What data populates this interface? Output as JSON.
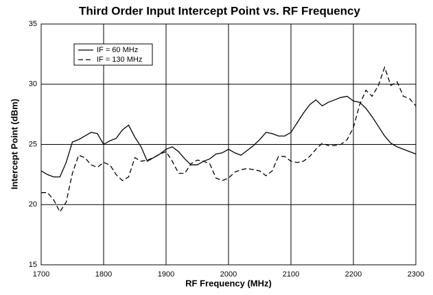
{
  "chart_data": {
    "type": "line",
    "title": "Third Order Input Intercept Point vs. RF Frequency",
    "x_label": "RF Frequency (MHz)",
    "y_label": "Intercept Point (dBm)",
    "x": [
      1700,
      1710,
      1720,
      1730,
      1740,
      1750,
      1760,
      1770,
      1780,
      1790,
      1800,
      1810,
      1820,
      1830,
      1840,
      1850,
      1860,
      1870,
      1880,
      1890,
      1900,
      1910,
      1920,
      1930,
      1940,
      1950,
      1960,
      1970,
      1980,
      1990,
      2000,
      2010,
      2020,
      2030,
      2040,
      2050,
      2060,
      2070,
      2080,
      2090,
      2100,
      2110,
      2120,
      2130,
      2140,
      2150,
      2160,
      2170,
      2180,
      2190,
      2200,
      2210,
      2220,
      2230,
      2240,
      2250,
      2260,
      2270,
      2280,
      2290,
      2300
    ],
    "series": [
      {
        "name": "IF = 60 MHz",
        "color": "#000000",
        "dash": "solid",
        "values": [
          22.8,
          22.5,
          22.3,
          22.3,
          23.5,
          25.2,
          25.4,
          25.7,
          26.0,
          25.9,
          25.0,
          25.3,
          25.5,
          26.2,
          26.6,
          25.6,
          24.8,
          23.6,
          23.9,
          24.2,
          24.6,
          24.8,
          24.4,
          23.8,
          23.3,
          23.3,
          23.6,
          23.8,
          24.2,
          24.3,
          24.6,
          24.3,
          24.1,
          24.5,
          24.9,
          25.4,
          26.0,
          25.9,
          25.7,
          25.7,
          26.0,
          26.8,
          27.6,
          28.3,
          28.7,
          28.2,
          28.5,
          28.7,
          28.9,
          29.0,
          28.6,
          28.5,
          28.0,
          27.3,
          26.5,
          25.7,
          25.1,
          24.8,
          24.6,
          24.4,
          24.2
        ]
      },
      {
        "name": "IF = 130 MHz",
        "color": "#000000",
        "dash": "dashed",
        "values": [
          21.0,
          21.0,
          20.4,
          19.4,
          20.2,
          22.6,
          24.1,
          23.9,
          23.3,
          23.1,
          23.5,
          23.3,
          22.5,
          22.0,
          22.3,
          23.9,
          23.6,
          23.7,
          23.9,
          24.2,
          24.4,
          23.6,
          22.6,
          22.6,
          23.4,
          23.7,
          23.6,
          23.4,
          22.2,
          22.0,
          22.2,
          22.7,
          22.9,
          23.0,
          22.9,
          22.8,
          22.4,
          22.8,
          24.0,
          24.0,
          23.6,
          23.5,
          23.6,
          24.0,
          24.6,
          25.1,
          24.9,
          24.9,
          25.0,
          25.4,
          26.4,
          28.3,
          29.5,
          29.0,
          29.9,
          31.4,
          29.9,
          30.2,
          29.0,
          28.8,
          28.2
        ]
      }
    ],
    "xlim": [
      1700,
      2300
    ],
    "xticks": [
      1700,
      1800,
      1900,
      2000,
      2100,
      2200,
      2300
    ],
    "ylim": [
      15,
      35
    ],
    "yticks": [
      15,
      20,
      25,
      30,
      35
    ],
    "grid": true,
    "legend": "top-left"
  }
}
